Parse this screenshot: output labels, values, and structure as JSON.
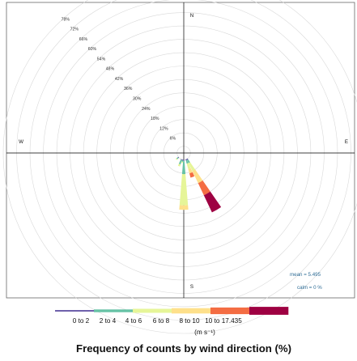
{
  "chart_data": {
    "type": "wind-rose",
    "title": "Frequency of counts by wind direction (%)",
    "directions": {
      "north": "N",
      "south": "S",
      "east": "E",
      "west": "W"
    },
    "radial_ticks": [
      6,
      12,
      18,
      24,
      30,
      36,
      42,
      48,
      54,
      60,
      66,
      72,
      78
    ],
    "radial_tick_labels": [
      "6%",
      "12%",
      "18%",
      "24%",
      "30%",
      "36%",
      "42%",
      "48%",
      "54%",
      "60%",
      "66%",
      "72%",
      "78%"
    ],
    "rmax": 78,
    "offset_pct": 3,
    "stats": {
      "mean": "mean = 5.495",
      "calm": "calm = 0 %"
    },
    "legend": {
      "labels": [
        "0 to 2",
        "2 to 4",
        "4 to 6",
        "6 to 8",
        "8 to 10",
        "10 to 17.435"
      ],
      "units": "(m s⁻¹)"
    },
    "bins": [
      {
        "label": "0 to 2",
        "color": "#5e4fa2"
      },
      {
        "label": "2 to 4",
        "color": "#66c2a5"
      },
      {
        "label": "4 to 6",
        "color": "#e6f598"
      },
      {
        "label": "6 to 8",
        "color": "#fee08b"
      },
      {
        "label": "8 to 10",
        "color": "#f46d43"
      },
      {
        "label": "10 to 17.435",
        "color": "#9e0142"
      }
    ],
    "series": [
      {
        "direction_deg": 150,
        "values": [
          0.5,
          1.5,
          4.0,
          6.0,
          6.0,
          8.5
        ]
      },
      {
        "direction_deg": 160,
        "values": [
          0.5,
          1.5,
          2.5,
          2.0,
          2.0,
          0.0
        ]
      },
      {
        "direction_deg": 180,
        "values": [
          0.5,
          6.0,
          14.0,
          2.0,
          0.0,
          0.0
        ]
      },
      {
        "direction_deg": 190,
        "values": [
          0.3,
          0.7,
          0.5,
          0.0,
          0.0,
          0.0
        ]
      },
      {
        "direction_deg": 200,
        "values": [
          0.3,
          2.0,
          1.0,
          0.0,
          0.0,
          0.0
        ]
      },
      {
        "direction_deg": 230,
        "values": [
          0.3,
          0.7,
          0.5,
          0.0,
          0.0,
          0.0
        ]
      }
    ]
  }
}
